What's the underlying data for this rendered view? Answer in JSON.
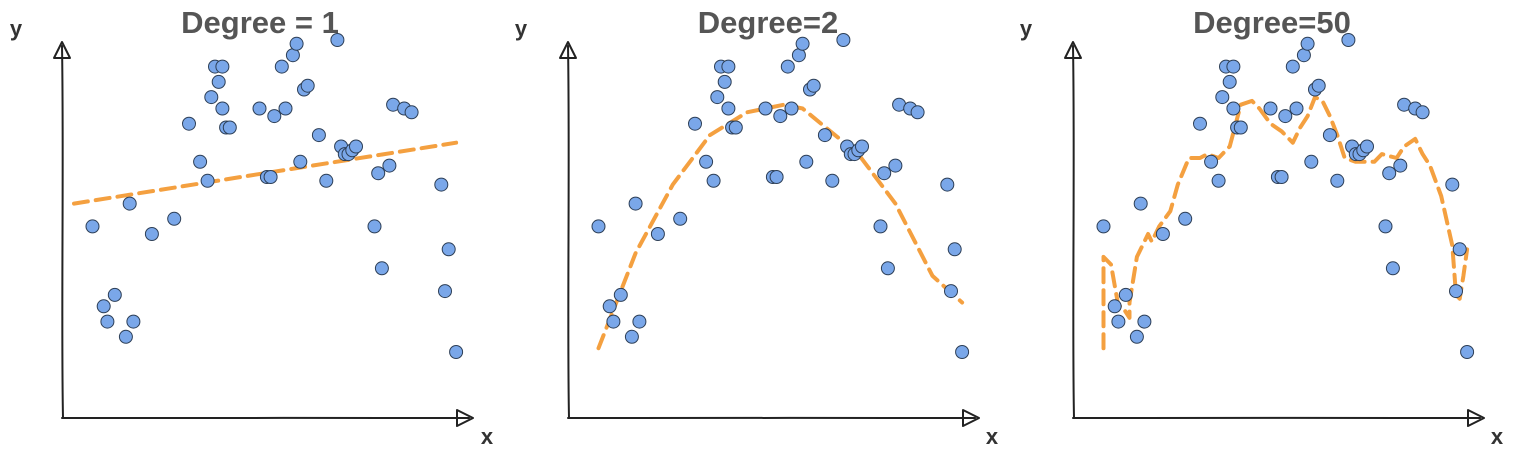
{
  "figure": {
    "point_color": "#7AA7E9",
    "fit_color": "#F4A040",
    "title_color": "#555555"
  },
  "chart_data": [
    {
      "type": "scatter",
      "title": "Degree = 1",
      "xlabel": "x",
      "ylabel": "y",
      "grid": false,
      "xlim": [
        0,
        100
      ],
      "ylim": [
        0,
        100
      ],
      "points": {
        "x": [
          5,
          8,
          9,
          11,
          14,
          15,
          16,
          21,
          27,
          31,
          34,
          36,
          37,
          38,
          39,
          40,
          40,
          41,
          42,
          50,
          52,
          53,
          54,
          56,
          57,
          59,
          60,
          61,
          62,
          63,
          66,
          68,
          71,
          72,
          73,
          74,
          75,
          76,
          81,
          82,
          83,
          85,
          86,
          89,
          91,
          99,
          100,
          101,
          103
        ],
        "y": [
          51,
          30,
          26,
          33,
          22,
          57,
          26,
          49,
          53,
          78,
          68,
          63,
          85,
          93,
          89,
          93,
          82,
          77,
          77,
          82,
          64,
          64,
          80,
          93,
          82,
          96,
          99,
          68,
          87,
          88,
          75,
          63,
          100,
          72,
          70,
          70,
          71,
          72,
          51,
          65,
          40,
          67,
          83,
          82,
          81,
          62,
          34,
          45,
          18
        ]
      },
      "fit": {
        "label": "degree 1",
        "x": [
          0,
          103
        ],
        "y": [
          57,
          73
        ]
      }
    },
    {
      "type": "scatter",
      "title": "Degree=2",
      "xlabel": "x",
      "ylabel": "y",
      "grid": false,
      "xlim": [
        0,
        100
      ],
      "ylim": [
        0,
        100
      ],
      "points": {
        "x": [
          5,
          8,
          9,
          11,
          14,
          15,
          16,
          21,
          27,
          31,
          34,
          36,
          37,
          38,
          39,
          40,
          40,
          41,
          42,
          50,
          52,
          53,
          54,
          56,
          57,
          59,
          60,
          61,
          62,
          63,
          66,
          68,
          71,
          72,
          73,
          74,
          75,
          76,
          81,
          82,
          83,
          85,
          86,
          89,
          91,
          99,
          100,
          101,
          103
        ],
        "y": [
          51,
          30,
          26,
          33,
          22,
          57,
          26,
          49,
          53,
          78,
          68,
          63,
          85,
          93,
          89,
          93,
          82,
          77,
          77,
          82,
          64,
          64,
          80,
          93,
          82,
          96,
          99,
          68,
          87,
          88,
          75,
          63,
          100,
          72,
          70,
          70,
          71,
          72,
          51,
          65,
          40,
          67,
          83,
          82,
          81,
          62,
          34,
          45,
          18
        ]
      },
      "fit": {
        "label": "degree 2",
        "x": [
          5,
          15,
          25,
          35,
          45,
          55,
          60,
          65,
          75,
          85,
          95,
          103
        ],
        "y": [
          19,
          44,
          62,
          75,
          81,
          83,
          82,
          78,
          70,
          57,
          38,
          31
        ]
      }
    },
    {
      "type": "scatter",
      "title": "Degree=50",
      "xlabel": "x",
      "ylabel": "y",
      "grid": false,
      "xlim": [
        0,
        100
      ],
      "ylim": [
        0,
        100
      ],
      "points": {
        "x": [
          5,
          8,
          9,
          11,
          14,
          15,
          16,
          21,
          27,
          31,
          34,
          36,
          37,
          38,
          39,
          40,
          40,
          41,
          42,
          50,
          52,
          53,
          54,
          56,
          57,
          59,
          60,
          61,
          62,
          63,
          66,
          68,
          71,
          72,
          73,
          74,
          75,
          76,
          81,
          82,
          83,
          85,
          86,
          89,
          91,
          99,
          100,
          101,
          103
        ],
        "y": [
          51,
          30,
          26,
          33,
          22,
          57,
          26,
          49,
          53,
          78,
          68,
          63,
          85,
          93,
          89,
          93,
          82,
          77,
          77,
          82,
          64,
          64,
          80,
          93,
          82,
          96,
          99,
          68,
          87,
          88,
          75,
          63,
          100,
          72,
          70,
          70,
          71,
          72,
          51,
          65,
          40,
          67,
          83,
          82,
          81,
          62,
          34,
          45,
          18
        ]
      },
      "fit": {
        "label": "degree 50",
        "x": [
          5,
          5,
          7,
          9,
          10,
          12,
          12,
          14,
          17,
          18,
          20,
          23,
          25,
          28,
          31,
          33,
          36,
          39,
          42,
          45,
          47,
          50,
          53,
          56,
          58,
          60,
          62,
          64,
          66,
          68,
          70,
          73,
          75,
          78,
          80,
          84,
          86,
          89,
          91,
          93,
          96,
          99,
          100,
          101,
          102,
          103
        ],
        "y": [
          19,
          43,
          41,
          30,
          30,
          27,
          31,
          43,
          49,
          47,
          51,
          55,
          62,
          69,
          69,
          70,
          69,
          72,
          83,
          84,
          82,
          78,
          76,
          73,
          77,
          80,
          85,
          84,
          80,
          75,
          69,
          68,
          68,
          68,
          70,
          69,
          72,
          74,
          70,
          67,
          59,
          46,
          33,
          32,
          38,
          45
        ]
      }
    }
  ]
}
